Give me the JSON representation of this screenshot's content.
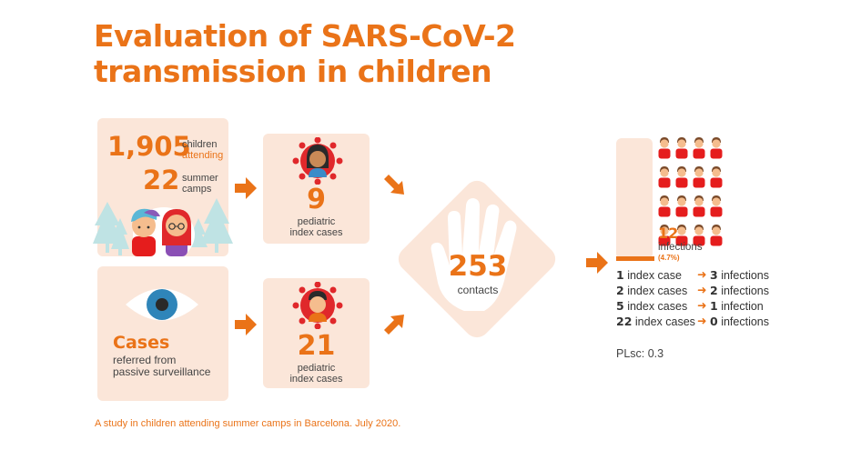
{
  "title": {
    "line1": "Evaluation of SARS-CoV-2",
    "line2": "transmission in children"
  },
  "camps": {
    "children_count": "1,905",
    "children_label1": "children",
    "children_label2": "attending",
    "camps_count": "22",
    "camps_label1": "summer",
    "camps_label2": "camps"
  },
  "surveillance": {
    "heading": "Cases",
    "line1": "referred from",
    "line2": "passive surveillance"
  },
  "index_top": {
    "count": "9",
    "line1": "pediatric",
    "line2": "index cases"
  },
  "index_bottom": {
    "count": "21",
    "line1": "pediatric",
    "line2": "index cases"
  },
  "contacts": {
    "count": "253",
    "label": "contacts"
  },
  "infections": {
    "count": "12",
    "label": "infections",
    "percent": "(4.7%)",
    "people_total": 16,
    "people_grid_cols": 4
  },
  "breakdown": [
    {
      "n": "1",
      "index_label": "index case",
      "m": "3",
      "inf_label": "infections"
    },
    {
      "n": "2",
      "index_label": "index cases",
      "m": "2",
      "inf_label": "infections"
    },
    {
      "n": "5",
      "index_label": "index cases",
      "m": "1",
      "inf_label": "infection"
    },
    {
      "n": "22",
      "index_label": "index cases",
      "m": "0",
      "inf_label": "infections"
    }
  ],
  "plsc": "PLsc: 0.3",
  "footer": "A study in children attending summer camps in Barcelona. July 2020.",
  "colors": {
    "accent": "#ea7318",
    "panel": "#fbe6d9",
    "virus": "#e0282b",
    "shirt": "#e51d1d",
    "skin": "#f5bd8e",
    "hair": "#7a4a2a",
    "tree": "#bfe3e4"
  },
  "icons": [
    "tree-icon",
    "boy-icon",
    "girl-icon",
    "eye-icon",
    "virus-icon",
    "hand-icon",
    "person-icon",
    "arrow-icon"
  ]
}
